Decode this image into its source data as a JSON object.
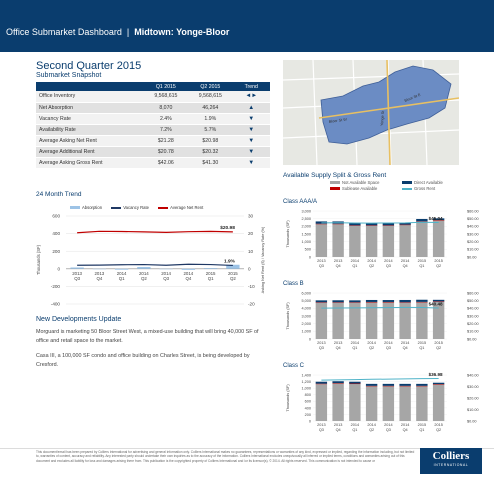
{
  "header": {
    "title": "Office Submarket Dashboard",
    "separator": "|",
    "submarket": "Midtown: Yonge-Bloor"
  },
  "period": "Second Quarter 2015",
  "snapshot": {
    "title": "Submarket Snapshot",
    "columns": [
      "",
      "Q1 2015",
      "Q2 2015",
      "Trend"
    ],
    "rows": [
      {
        "label": "Office Inventory",
        "q1": "9,568,615",
        "q2": "9,568,615",
        "trend": "◄►"
      },
      {
        "label": "Net Absorption",
        "q1": "8,070",
        "q2": "46,264",
        "trend": "▲"
      },
      {
        "label": "Vacancy Rate",
        "q1": "2.4%",
        "q2": "1.9%",
        "trend": "▼"
      },
      {
        "label": "Availability Rate",
        "q1": "7.2%",
        "q2": "5.7%",
        "trend": "▼"
      },
      {
        "label": "Average Asking Net Rent",
        "q1": "$21.28",
        "q2": "$20.98",
        "trend": "▼"
      },
      {
        "label": "Average Additional Rent",
        "q1": "$20.78",
        "q2": "$20.32",
        "trend": "▼"
      },
      {
        "label": "Average Asking Gross Rent",
        "q1": "$42.06",
        "q2": "$41.30",
        "trend": "▼"
      }
    ]
  },
  "map": {
    "labels": [
      "Bloor St W",
      "Yonge St",
      "Bloor St E"
    ]
  },
  "colors": {
    "navy": "#0a3d6e",
    "map_region": "#6b8cc4",
    "absorption": "#9dc3e6",
    "vacancy": "#1f3864",
    "net_rent": "#c00000",
    "not_available": "#a6a6a6",
    "sublease": "#c00000",
    "direct": "#0a3d6e",
    "gross_rent": "#4fb3c8"
  },
  "supply": {
    "title": "Available Supply Split & Gross Rent",
    "legend": [
      "Not Available Space",
      "Direct Available",
      "Sublease Available",
      "Gross Rent"
    ]
  },
  "developments": {
    "title": "New Developments Update",
    "p1": "Morguard is marketing 50 Bloor Street West, a mixed-use building that will bring 40,000 SF of office and retail space to the market.",
    "p2": "Casa III, a 100,000 SF condo and office building on Charles Street, is being developed by Cresford."
  },
  "disclaimer": "This document/email has been prepared by Colliers International for advertising and general information only. Colliers International makes no guarantees, representations or warranties of any kind, expressed or implied, regarding the information including, but not limited to, warranties of content, accuracy and reliability. Any interested party should undertake their own inquiries as to the accuracy of the information. Colliers International excludes unequivocally all inferred or implied terms, conditions and warranties arising out of this document and excludes all liability for loss and damages arising there from. This publication is the copyrighted property of Colliers International and /or its licensor(s). © 2014. All rights reserved. This communication is not intended to cause or",
  "logo": {
    "word": "Colliers",
    "tag": "INTERNATIONAL"
  },
  "chart_data": [
    {
      "type": "bar",
      "title": "24 Month Trend",
      "legend": [
        "Absorption",
        "Vacancy Rate",
        "Average Net Rent"
      ],
      "categories": [
        "2013 Q3",
        "2013 Q4",
        "2014 Q1",
        "2014 Q2",
        "2014 Q3",
        "2014 Q4",
        "2015 Q1",
        "2015 Q2"
      ],
      "category_lines": [
        [
          "2013",
          "Q3"
        ],
        [
          "2013",
          "Q4"
        ],
        [
          "2014",
          "Q1"
        ],
        [
          "2014",
          "Q2"
        ],
        [
          "2014",
          "Q3"
        ],
        [
          "2014",
          "Q4"
        ],
        [
          "2015",
          "Q1"
        ],
        [
          "2015",
          "Q2"
        ]
      ],
      "ylabel": "Thousands (SF)",
      "y2label": "Asking Net Rent ($) / Vacancy Rate (%)",
      "ylim": [
        -400,
        600
      ],
      "yticks": [
        -400,
        -200,
        0,
        200,
        400,
        600
      ],
      "y2lim": [
        -20,
        30
      ],
      "y2ticks": [
        -20,
        -10,
        0,
        10,
        20,
        30
      ],
      "series": [
        {
          "name": "Absorption",
          "kind": "bar",
          "values": [
            15,
            -5,
            -10,
            20,
            -5,
            -12,
            8,
            46
          ]
        },
        {
          "name": "Vacancy Rate",
          "kind": "line",
          "axis": "right",
          "values": [
            2.0,
            2.1,
            2.3,
            2.4,
            2.0,
            2.6,
            2.4,
            1.9
          ]
        },
        {
          "name": "Average Net Rent",
          "kind": "line",
          "axis": "right",
          "values": [
            20.5,
            21.3,
            21.2,
            21.0,
            20.7,
            21.1,
            21.28,
            20.98
          ]
        }
      ],
      "annotations": [
        "$20.98",
        "1.9%"
      ]
    },
    {
      "type": "bar",
      "title": "Class AAA/A",
      "categories": [
        "2013 Q3",
        "2013 Q4",
        "2014 Q1",
        "2014 Q2",
        "2014 Q3",
        "2014 Q4",
        "2015 Q1",
        "2015 Q2"
      ],
      "category_lines": [
        [
          "2013",
          "Q3"
        ],
        [
          "2013",
          "Q4"
        ],
        [
          "2014",
          "Q1"
        ],
        [
          "2014",
          "Q2"
        ],
        [
          "2014",
          "Q3"
        ],
        [
          "2014",
          "Q4"
        ],
        [
          "2015",
          "Q1"
        ],
        [
          "2015",
          "Q2"
        ]
      ],
      "ylabel": "Thousands (SF)",
      "ylim": [
        0,
        3000
      ],
      "yticks": [
        0,
        500,
        1000,
        1500,
        2000,
        2500,
        3000
      ],
      "ytick_labels": [
        "0",
        "500",
        "1,000",
        "1,500",
        "2,000",
        "2,500",
        "3,000"
      ],
      "y2lim": [
        0,
        60
      ],
      "y2ticks": [
        0,
        10,
        20,
        30,
        40,
        50,
        60
      ],
      "y2tick_labels": [
        "$0.00",
        "$10.00",
        "$20.00",
        "$30.00",
        "$40.00",
        "$50.00",
        "$60.00"
      ],
      "series": [
        {
          "name": "Not Available Space",
          "kind": "stack",
          "values": [
            2150,
            2150,
            2050,
            2050,
            2050,
            2100,
            2320,
            2400
          ]
        },
        {
          "name": "Sublease Available",
          "kind": "stack",
          "values": [
            20,
            20,
            15,
            15,
            15,
            10,
            10,
            10
          ]
        },
        {
          "name": "Direct Available",
          "kind": "stack",
          "values": [
            150,
            150,
            150,
            150,
            150,
            120,
            150,
            110
          ]
        },
        {
          "name": "Gross Rent",
          "kind": "line",
          "axis": "right",
          "values": [
            44.5,
            44.6,
            44.3,
            44.2,
            44.4,
            44.5,
            45.4,
            45.04
          ]
        }
      ],
      "annotations": [
        "$45.04"
      ]
    },
    {
      "type": "bar",
      "title": "Class B",
      "categories": [
        "2013 Q3",
        "2013 Q4",
        "2014 Q1",
        "2014 Q2",
        "2014 Q3",
        "2014 Q4",
        "2015 Q1",
        "2015 Q2"
      ],
      "category_lines": [
        [
          "2013",
          "Q3"
        ],
        [
          "2013",
          "Q4"
        ],
        [
          "2014",
          "Q1"
        ],
        [
          "2014",
          "Q2"
        ],
        [
          "2014",
          "Q3"
        ],
        [
          "2014",
          "Q4"
        ],
        [
          "2015",
          "Q1"
        ],
        [
          "2015",
          "Q2"
        ]
      ],
      "ylabel": "Thousands (SF)",
      "ylim": [
        0,
        6000
      ],
      "yticks": [
        0,
        1000,
        2000,
        3000,
        4000,
        5000,
        6000
      ],
      "ytick_labels": [
        "0",
        "1,000",
        "2,000",
        "3,000",
        "4,000",
        "5,000",
        "6,000"
      ],
      "y2lim": [
        0,
        60
      ],
      "y2ticks": [
        0,
        10,
        20,
        30,
        40,
        50,
        60
      ],
      "y2tick_labels": [
        "$0.00",
        "$10.00",
        "$20.00",
        "$30.00",
        "$40.00",
        "$50.00",
        "$60.00"
      ],
      "series": [
        {
          "name": "Not Available Space",
          "kind": "stack",
          "values": [
            4750,
            4750,
            4750,
            4800,
            4800,
            4750,
            4800,
            4880
          ]
        },
        {
          "name": "Sublease Available",
          "kind": "stack",
          "values": [
            40,
            40,
            40,
            30,
            30,
            40,
            40,
            30
          ]
        },
        {
          "name": "Direct Available",
          "kind": "stack",
          "values": [
            250,
            260,
            250,
            260,
            250,
            300,
            280,
            200
          ]
        },
        {
          "name": "Gross Rent",
          "kind": "line",
          "axis": "right",
          "values": [
            40.2,
            40.4,
            40.6,
            40.8,
            40.9,
            41.2,
            41.1,
            40.48
          ]
        }
      ],
      "annotations": [
        "$40.48"
      ]
    },
    {
      "type": "bar",
      "title": "Class C",
      "categories": [
        "2013 Q3",
        "2013 Q4",
        "2014 Q1",
        "2014 Q2",
        "2014 Q3",
        "2014 Q4",
        "2015 Q1",
        "2015 Q2"
      ],
      "category_lines": [
        [
          "2013",
          "Q3"
        ],
        [
          "2013",
          "Q4"
        ],
        [
          "2014",
          "Q1"
        ],
        [
          "2014",
          "Q2"
        ],
        [
          "2014",
          "Q3"
        ],
        [
          "2014",
          "Q4"
        ],
        [
          "2015",
          "Q1"
        ],
        [
          "2015",
          "Q2"
        ]
      ],
      "ylabel": "Thousands (SF)",
      "ylim": [
        0,
        1400
      ],
      "yticks": [
        0,
        200,
        400,
        600,
        800,
        1000,
        1200,
        1400
      ],
      "ytick_labels": [
        "0",
        "200",
        "400",
        "600",
        "800",
        "1,000",
        "1,200",
        "1,400"
      ],
      "y2lim": [
        0,
        40
      ],
      "y2ticks": [
        0,
        10,
        20,
        30,
        40
      ],
      "y2tick_labels": [
        "$0.00",
        "$10.00",
        "$20.00",
        "$30.00",
        "$40.00"
      ],
      "series": [
        {
          "name": "Not Available Space",
          "kind": "stack",
          "values": [
            1120,
            1140,
            1130,
            1060,
            1060,
            1060,
            1060,
            1120
          ]
        },
        {
          "name": "Sublease Available",
          "kind": "stack",
          "values": [
            15,
            15,
            10,
            10,
            10,
            10,
            10,
            5
          ]
        },
        {
          "name": "Direct Available",
          "kind": "stack",
          "values": [
            60,
            55,
            55,
            60,
            60,
            60,
            60,
            40
          ]
        },
        {
          "name": "Gross Rent",
          "kind": "line",
          "axis": "right",
          "values": [
            35.5,
            35.8,
            36.0,
            36.3,
            36.4,
            36.6,
            36.9,
            36.98
          ]
        }
      ],
      "annotations": [
        "$36.98"
      ]
    }
  ]
}
